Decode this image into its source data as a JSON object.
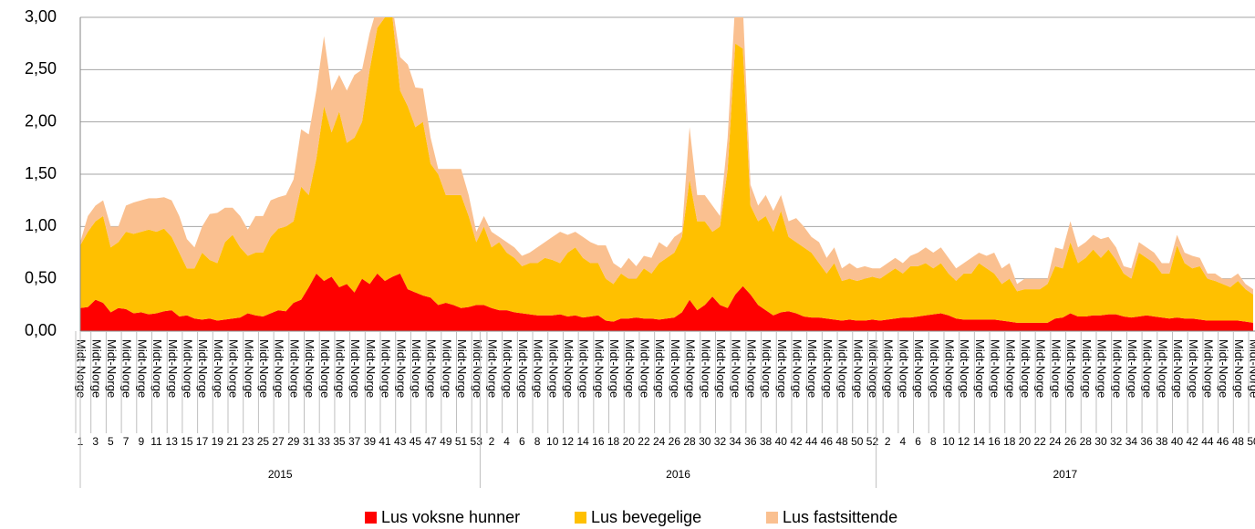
{
  "chart_data": {
    "type": "stacked_area",
    "yticks": [
      {
        "value": 0,
        "label": "0,00"
      },
      {
        "value": 0.5,
        "label": "0,50"
      },
      {
        "value": 1,
        "label": "1,00"
      },
      {
        "value": 1.5,
        "label": "1,50"
      },
      {
        "value": 2,
        "label": "2,00"
      },
      {
        "value": 2.5,
        "label": "2,50"
      },
      {
        "value": 3,
        "label": "3,00"
      }
    ],
    "ylim": [
      0,
      3
    ],
    "grid": true,
    "legend": "bottom",
    "region": "Midt-Norge",
    "groups": [
      {
        "label": "2015",
        "categories": [
          "1",
          null,
          "3",
          null,
          "5",
          null,
          "7",
          null,
          "9",
          null,
          "11",
          null,
          "13",
          null,
          "15",
          null,
          "17",
          null,
          "19",
          null,
          "21",
          null,
          "23",
          null,
          "25",
          null,
          "27",
          null,
          "29",
          null,
          "31",
          null,
          "33",
          null,
          "35",
          null,
          "37",
          null,
          "39",
          null,
          "41",
          null,
          "43",
          null,
          "45",
          null,
          "47",
          null,
          "49",
          null,
          "51",
          null,
          "53"
        ]
      },
      {
        "label": "2016",
        "categories": [
          null,
          "2",
          null,
          "4",
          null,
          "6",
          null,
          "8",
          null,
          "10",
          null,
          "12",
          null,
          "14",
          null,
          "16",
          null,
          "18",
          null,
          "20",
          null,
          "22",
          null,
          "24",
          null,
          "26",
          null,
          "28",
          null,
          "30",
          null,
          "32",
          null,
          "34",
          null,
          "36",
          null,
          "38",
          null,
          "40",
          null,
          "42",
          null,
          "44",
          null,
          "46",
          null,
          "48",
          null,
          "50",
          null,
          "52"
        ]
      },
      {
        "label": "2017",
        "categories": [
          null,
          "2",
          null,
          "4",
          null,
          "6",
          null,
          "8",
          null,
          "10",
          null,
          "12",
          null,
          "14",
          null,
          "16",
          null,
          "18",
          null,
          "20",
          null,
          "22",
          null,
          "24",
          null,
          "26",
          null,
          "28",
          null,
          "30",
          null,
          "32",
          null,
          "34",
          null,
          "36",
          null,
          "38",
          null,
          "40",
          null,
          "42",
          null,
          "44",
          null,
          "46",
          null,
          "48",
          null,
          "50"
        ]
      }
    ],
    "series": [
      {
        "name": "Lus voksne hunner",
        "color": "#ff0000",
        "values": [
          0.22,
          0.23,
          0.3,
          0.27,
          0.18,
          0.22,
          0.21,
          0.17,
          0.18,
          0.16,
          0.17,
          0.19,
          0.2,
          0.14,
          0.15,
          0.12,
          0.11,
          0.12,
          0.1,
          0.11,
          0.12,
          0.13,
          0.17,
          0.15,
          0.14,
          0.17,
          0.2,
          0.19,
          0.27,
          0.3,
          0.42,
          0.55,
          0.48,
          0.52,
          0.42,
          0.45,
          0.37,
          0.5,
          0.45,
          0.55,
          0.48,
          0.52,
          0.55,
          0.4,
          0.37,
          0.34,
          0.32,
          0.25,
          0.27,
          0.25,
          0.22,
          0.23,
          0.25,
          0.25,
          0.22,
          0.2,
          0.2,
          0.18,
          0.17,
          0.16,
          0.15,
          0.15,
          0.15,
          0.16,
          0.14,
          0.15,
          0.13,
          0.14,
          0.15,
          0.1,
          0.09,
          0.12,
          0.12,
          0.13,
          0.12,
          0.12,
          0.11,
          0.12,
          0.13,
          0.18,
          0.3,
          0.2,
          0.25,
          0.33,
          0.25,
          0.22,
          0.35,
          0.43,
          0.35,
          0.25,
          0.2,
          0.15,
          0.18,
          0.19,
          0.17,
          0.14,
          0.13,
          0.13,
          0.12,
          0.11,
          0.1,
          0.11,
          0.1,
          0.1,
          0.11,
          0.1,
          0.11,
          0.12,
          0.13,
          0.13,
          0.14,
          0.15,
          0.16,
          0.17,
          0.15,
          0.12,
          0.11,
          0.11,
          0.11,
          0.11,
          0.11,
          0.1,
          0.09,
          0.08,
          0.08,
          0.08,
          0.08,
          0.08,
          0.12,
          0.13,
          0.17,
          0.14,
          0.14,
          0.15,
          0.15,
          0.16,
          0.16,
          0.14,
          0.13,
          0.14,
          0.15,
          0.14,
          0.13,
          0.12,
          0.13,
          0.12,
          0.12,
          0.11,
          0.1,
          0.1,
          0.1,
          0.1,
          0.1,
          0.09,
          0.08
        ]
      },
      {
        "name": "Lus bevegelige",
        "color": "#ffc000",
        "values": [
          0.6,
          0.72,
          0.75,
          0.83,
          0.62,
          0.63,
          0.74,
          0.76,
          0.77,
          0.81,
          0.78,
          0.79,
          0.7,
          0.61,
          0.45,
          0.48,
          0.64,
          0.56,
          0.55,
          0.74,
          0.8,
          0.67,
          0.55,
          0.6,
          0.61,
          0.73,
          0.78,
          0.81,
          0.78,
          1.08,
          0.88,
          1.1,
          1.67,
          1.38,
          1.68,
          1.35,
          1.48,
          1.5,
          2.05,
          2.35,
          2.52,
          2.48,
          1.75,
          1.75,
          1.58,
          1.66,
          1.28,
          1.25,
          1.03,
          1.05,
          1.08,
          0.87,
          0.6,
          0.75,
          0.58,
          0.65,
          0.55,
          0.52,
          0.45,
          0.49,
          0.5,
          0.55,
          0.53,
          0.49,
          0.61,
          0.65,
          0.57,
          0.51,
          0.5,
          0.4,
          0.36,
          0.43,
          0.38,
          0.37,
          0.48,
          0.43,
          0.54,
          0.58,
          0.62,
          0.72,
          1.15,
          0.85,
          0.8,
          0.62,
          0.75,
          1.33,
          2.4,
          2.27,
          0.85,
          0.8,
          0.9,
          0.8,
          0.97,
          0.71,
          0.68,
          0.66,
          0.62,
          0.52,
          0.43,
          0.54,
          0.38,
          0.39,
          0.38,
          0.4,
          0.41,
          0.4,
          0.44,
          0.48,
          0.42,
          0.49,
          0.48,
          0.5,
          0.44,
          0.48,
          0.4,
          0.36,
          0.44,
          0.44,
          0.54,
          0.49,
          0.44,
          0.35,
          0.41,
          0.3,
          0.32,
          0.32,
          0.32,
          0.37,
          0.5,
          0.47,
          0.68,
          0.51,
          0.56,
          0.63,
          0.55,
          0.62,
          0.52,
          0.41,
          0.37,
          0.61,
          0.55,
          0.51,
          0.42,
          0.43,
          0.69,
          0.53,
          0.48,
          0.51,
          0.4,
          0.38,
          0.35,
          0.32,
          0.38,
          0.31,
          0.27
        ]
      },
      {
        "name": "Lus fastsittende",
        "color": "#fac090",
        "values": [
          0.03,
          0.15,
          0.15,
          0.15,
          0.2,
          0.15,
          0.25,
          0.3,
          0.3,
          0.3,
          0.32,
          0.3,
          0.35,
          0.35,
          0.28,
          0.2,
          0.25,
          0.44,
          0.48,
          0.33,
          0.26,
          0.3,
          0.25,
          0.35,
          0.35,
          0.35,
          0.3,
          0.3,
          0.4,
          0.55,
          0.58,
          0.65,
          0.67,
          0.4,
          0.35,
          0.5,
          0.6,
          0.5,
          0.35,
          0.2,
          0.1,
          0.1,
          0.32,
          0.4,
          0.38,
          0.32,
          0.25,
          0.05,
          0.25,
          0.25,
          0.25,
          0.2,
          0.1,
          0.1,
          0.15,
          0.05,
          0.1,
          0.1,
          0.1,
          0.1,
          0.15,
          0.15,
          0.22,
          0.3,
          0.17,
          0.15,
          0.2,
          0.2,
          0.17,
          0.32,
          0.2,
          0.05,
          0.2,
          0.12,
          0.12,
          0.15,
          0.2,
          0.1,
          0.15,
          0.05,
          0.5,
          0.25,
          0.25,
          0.25,
          0.1,
          0.3,
          0.4,
          0.4,
          0.2,
          0.15,
          0.2,
          0.2,
          0.15,
          0.15,
          0.23,
          0.2,
          0.15,
          0.2,
          0.15,
          0.15,
          0.12,
          0.15,
          0.12,
          0.12,
          0.08,
          0.1,
          0.1,
          0.1,
          0.1,
          0.1,
          0.13,
          0.15,
          0.15,
          0.15,
          0.15,
          0.12,
          0.1,
          0.15,
          0.1,
          0.12,
          0.2,
          0.15,
          0.15,
          0.07,
          0.1,
          0.1,
          0.1,
          0.05,
          0.18,
          0.18,
          0.2,
          0.15,
          0.15,
          0.14,
          0.18,
          0.12,
          0.12,
          0.07,
          0.1,
          0.1,
          0.1,
          0.1,
          0.1,
          0.1,
          0.1,
          0.1,
          0.12,
          0.08,
          0.05,
          0.07,
          0.05,
          0.08,
          0.07,
          0.05,
          0.05
        ]
      }
    ]
  }
}
